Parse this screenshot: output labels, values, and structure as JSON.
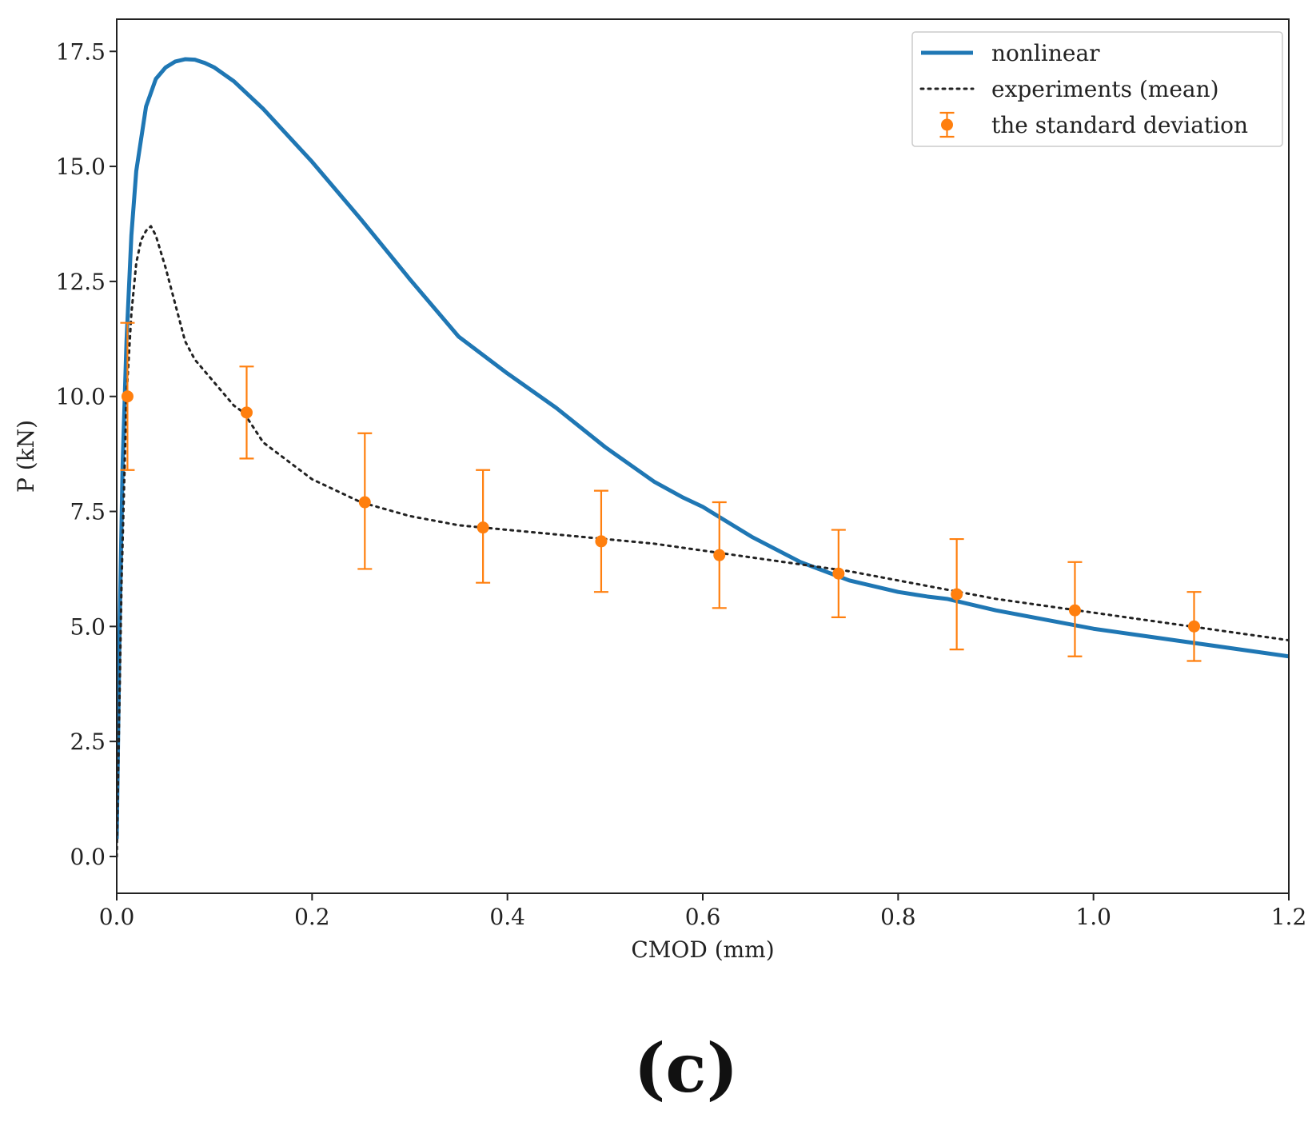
{
  "chart_data": {
    "type": "line",
    "title": "",
    "xlabel": "CMOD (mm)",
    "ylabel": "P (kN)",
    "xlim": [
      0.0,
      1.2
    ],
    "ylim": [
      -0.8,
      18.2
    ],
    "x_ticks": [
      0.0,
      0.2,
      0.4,
      0.6,
      0.8,
      1.0,
      1.2
    ],
    "x_tick_labels": [
      "0.0",
      "0.2",
      "0.4",
      "0.6",
      "0.8",
      "1.0",
      "1.2"
    ],
    "y_ticks": [
      0.0,
      2.5,
      5.0,
      7.5,
      10.0,
      12.5,
      15.0,
      17.5
    ],
    "y_tick_labels": [
      "0.0",
      "2.5",
      "5.0",
      "7.5",
      "10.0",
      "12.5",
      "15.0",
      "17.5"
    ],
    "grid": false,
    "legend_position": "top-right",
    "series": [
      {
        "name": "nonlinear",
        "style": "solid",
        "color": "#1f77b4",
        "x": [
          0.0,
          0.003,
          0.006,
          0.01,
          0.015,
          0.02,
          0.03,
          0.04,
          0.05,
          0.06,
          0.07,
          0.08,
          0.09,
          0.1,
          0.12,
          0.15,
          0.2,
          0.25,
          0.3,
          0.35,
          0.4,
          0.45,
          0.5,
          0.55,
          0.58,
          0.6,
          0.65,
          0.7,
          0.75,
          0.8,
          0.83,
          0.85,
          0.9,
          0.95,
          1.0,
          1.05,
          1.1,
          1.15,
          1.2
        ],
        "y": [
          0.4,
          5.0,
          8.5,
          11.2,
          13.5,
          14.9,
          16.3,
          16.9,
          17.15,
          17.28,
          17.33,
          17.32,
          17.25,
          17.15,
          16.85,
          16.25,
          15.1,
          13.85,
          12.55,
          11.3,
          10.5,
          9.75,
          8.9,
          8.15,
          7.8,
          7.6,
          6.95,
          6.4,
          6.0,
          5.75,
          5.65,
          5.6,
          5.35,
          5.15,
          4.95,
          4.8,
          4.65,
          4.5,
          4.35
        ]
      },
      {
        "name": "experiments (mean)",
        "style": "dotted",
        "color": "#222222",
        "x": [
          0.0,
          0.005,
          0.01,
          0.015,
          0.02,
          0.025,
          0.03,
          0.035,
          0.04,
          0.05,
          0.06,
          0.07,
          0.08,
          0.1,
          0.12,
          0.13,
          0.15,
          0.2,
          0.25,
          0.3,
          0.35,
          0.4,
          0.45,
          0.5,
          0.55,
          0.6,
          0.65,
          0.7,
          0.75,
          0.8,
          0.85,
          0.9,
          0.95,
          1.0,
          1.05,
          1.1,
          1.15,
          1.2
        ],
        "y": [
          0.0,
          6.0,
          10.0,
          11.8,
          12.9,
          13.4,
          13.6,
          13.7,
          13.5,
          12.8,
          12.0,
          11.2,
          10.8,
          10.3,
          9.8,
          9.65,
          9.0,
          8.2,
          7.7,
          7.4,
          7.2,
          7.1,
          7.0,
          6.9,
          6.8,
          6.65,
          6.5,
          6.35,
          6.2,
          6.0,
          5.8,
          5.6,
          5.45,
          5.3,
          5.15,
          5.0,
          4.85,
          4.7
        ]
      }
    ],
    "errorbars": {
      "name": "the standard deviation",
      "color": "#ff7f0e",
      "x": [
        0.011,
        0.133,
        0.254,
        0.375,
        0.496,
        0.617,
        0.739,
        0.86,
        0.981,
        1.103
      ],
      "y": [
        10.0,
        9.65,
        7.7,
        7.15,
        6.85,
        6.55,
        6.15,
        5.7,
        5.35,
        5.0
      ],
      "yerr_low": [
        1.6,
        1.0,
        1.45,
        1.2,
        1.1,
        1.15,
        0.95,
        1.2,
        1.0,
        0.75
      ],
      "yerr_high": [
        1.6,
        1.0,
        1.5,
        1.25,
        1.1,
        1.15,
        0.95,
        1.2,
        1.05,
        0.75
      ]
    },
    "legend_entries": [
      "nonlinear",
      "experiments (mean)",
      "the standard deviation"
    ]
  },
  "panel_label": "(c)"
}
